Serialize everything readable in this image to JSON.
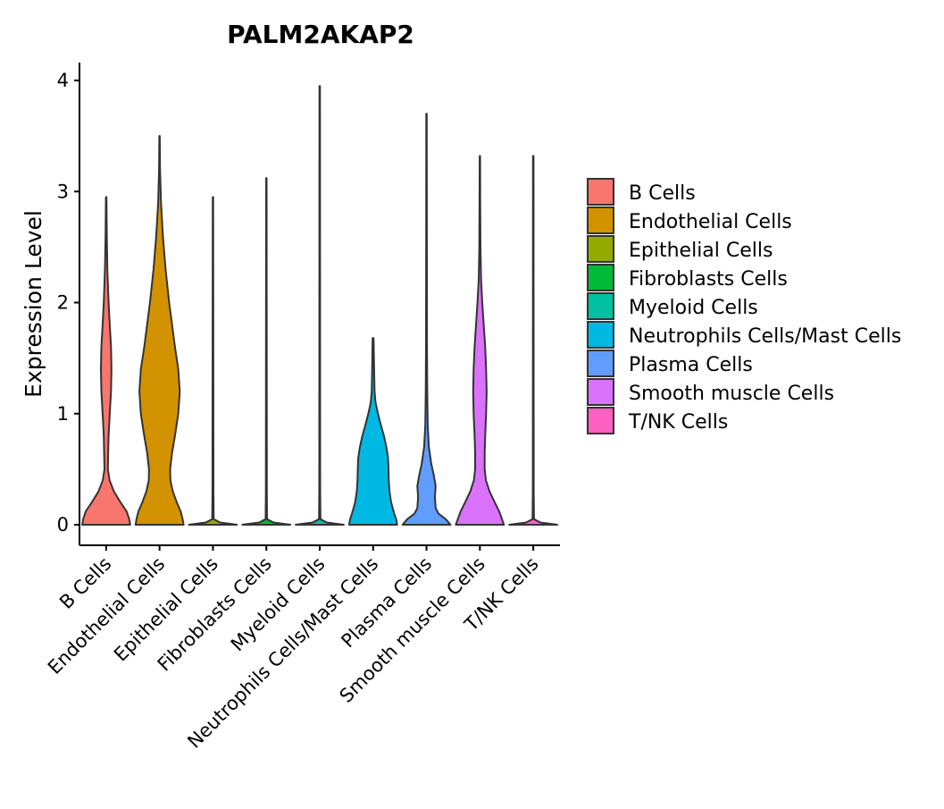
{
  "chart_data": {
    "type": "violin",
    "title": "PALM2AKAP2",
    "xlabel": "",
    "ylabel": "Expression Level",
    "ylim": [
      -0.2,
      4.15
    ],
    "yticks": [
      0,
      1,
      2,
      3,
      4
    ],
    "grid": false,
    "legend_position": "right",
    "categories": [
      "B Cells",
      "Endothelial Cells",
      "Epithelial Cells",
      "Fibroblasts Cells",
      "Myeloid Cells",
      "Neutrophils Cells/Mast Cells",
      "Plasma Cells",
      "Smooth muscle Cells",
      "T/NK Cells"
    ],
    "colors": [
      "#F8766D",
      "#D39200",
      "#93AA00",
      "#00BA38",
      "#00C19F",
      "#00B9E3",
      "#619CFF",
      "#DB72FB",
      "#FF61C3"
    ],
    "series": [
      {
        "name": "B Cells",
        "max": 2.95,
        "profile": [
          [
            0,
            1.0
          ],
          [
            0.05,
            0.96
          ],
          [
            0.12,
            0.85
          ],
          [
            0.2,
            0.6
          ],
          [
            0.3,
            0.32
          ],
          [
            0.4,
            0.14
          ],
          [
            0.5,
            0.07
          ],
          [
            0.6,
            0.08
          ],
          [
            0.8,
            0.1
          ],
          [
            1.0,
            0.15
          ],
          [
            1.2,
            0.2
          ],
          [
            1.4,
            0.22
          ],
          [
            1.6,
            0.2
          ],
          [
            1.8,
            0.15
          ],
          [
            2.0,
            0.1
          ],
          [
            2.3,
            0.05
          ],
          [
            2.6,
            0.025
          ],
          [
            2.95,
            0.01
          ]
        ]
      },
      {
        "name": "Endothelial Cells",
        "max": 3.5,
        "profile": [
          [
            0,
            1.0
          ],
          [
            0.05,
            0.96
          ],
          [
            0.12,
            0.88
          ],
          [
            0.2,
            0.72
          ],
          [
            0.3,
            0.55
          ],
          [
            0.4,
            0.45
          ],
          [
            0.5,
            0.44
          ],
          [
            0.65,
            0.52
          ],
          [
            0.8,
            0.64
          ],
          [
            1.0,
            0.78
          ],
          [
            1.2,
            0.84
          ],
          [
            1.4,
            0.78
          ],
          [
            1.6,
            0.64
          ],
          [
            1.8,
            0.52
          ],
          [
            2.0,
            0.4
          ],
          [
            2.3,
            0.25
          ],
          [
            2.6,
            0.14
          ],
          [
            2.9,
            0.06
          ],
          [
            3.2,
            0.02
          ],
          [
            3.5,
            0.01
          ]
        ]
      },
      {
        "name": "Epithelial Cells",
        "max": 2.95,
        "profile": [
          [
            0,
            1.0
          ],
          [
            0.02,
            0.3
          ],
          [
            0.05,
            0.03
          ],
          [
            0.3,
            0.02
          ],
          [
            2.95,
            0.01
          ]
        ]
      },
      {
        "name": "Fibroblasts Cells",
        "max": 3.12,
        "profile": [
          [
            0,
            1.0
          ],
          [
            0.02,
            0.3
          ],
          [
            0.05,
            0.03
          ],
          [
            0.3,
            0.02
          ],
          [
            3.12,
            0.01
          ]
        ]
      },
      {
        "name": "Myeloid Cells",
        "max": 3.95,
        "profile": [
          [
            0,
            1.0
          ],
          [
            0.02,
            0.3
          ],
          [
            0.05,
            0.03
          ],
          [
            0.3,
            0.02
          ],
          [
            3.95,
            0.01
          ]
        ]
      },
      {
        "name": "Neutrophils Cells/Mast Cells",
        "max": 1.68,
        "profile": [
          [
            0,
            1.0
          ],
          [
            0.05,
            0.96
          ],
          [
            0.1,
            0.88
          ],
          [
            0.2,
            0.75
          ],
          [
            0.3,
            0.68
          ],
          [
            0.4,
            0.65
          ],
          [
            0.5,
            0.64
          ],
          [
            0.6,
            0.62
          ],
          [
            0.7,
            0.55
          ],
          [
            0.8,
            0.45
          ],
          [
            0.9,
            0.32
          ],
          [
            1.0,
            0.2
          ],
          [
            1.1,
            0.1
          ],
          [
            1.2,
            0.06
          ],
          [
            1.4,
            0.04
          ],
          [
            1.68,
            0.02
          ]
        ]
      },
      {
        "name": "Plasma Cells",
        "max": 3.7,
        "profile": [
          [
            0,
            1.0
          ],
          [
            0.05,
            0.8
          ],
          [
            0.1,
            0.5
          ],
          [
            0.15,
            0.38
          ],
          [
            0.25,
            0.35
          ],
          [
            0.35,
            0.38
          ],
          [
            0.45,
            0.3
          ],
          [
            0.55,
            0.2
          ],
          [
            0.7,
            0.1
          ],
          [
            0.9,
            0.05
          ],
          [
            1.2,
            0.03
          ],
          [
            1.6,
            0.02
          ],
          [
            2.5,
            0.015
          ],
          [
            3.7,
            0.01
          ]
        ]
      },
      {
        "name": "Smooth muscle Cells",
        "max": 3.32,
        "profile": [
          [
            0,
            1.0
          ],
          [
            0.05,
            0.92
          ],
          [
            0.12,
            0.8
          ],
          [
            0.2,
            0.62
          ],
          [
            0.3,
            0.4
          ],
          [
            0.4,
            0.25
          ],
          [
            0.5,
            0.2
          ],
          [
            0.65,
            0.2
          ],
          [
            0.8,
            0.22
          ],
          [
            1.0,
            0.26
          ],
          [
            1.2,
            0.28
          ],
          [
            1.4,
            0.26
          ],
          [
            1.6,
            0.22
          ],
          [
            1.8,
            0.16
          ],
          [
            2.0,
            0.1
          ],
          [
            2.2,
            0.05
          ],
          [
            2.5,
            0.025
          ],
          [
            2.9,
            0.015
          ],
          [
            3.32,
            0.01
          ]
        ]
      },
      {
        "name": "T/NK Cells",
        "max": 3.32,
        "profile": [
          [
            0,
            1.0
          ],
          [
            0.02,
            0.3
          ],
          [
            0.05,
            0.03
          ],
          [
            0.3,
            0.02
          ],
          [
            3.32,
            0.01
          ]
        ]
      }
    ]
  }
}
